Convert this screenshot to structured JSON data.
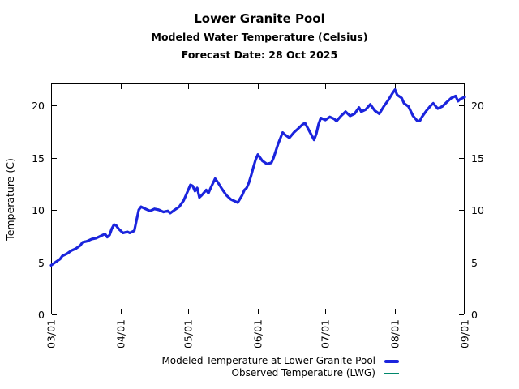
{
  "header": {
    "title": "Lower Granite Pool",
    "subtitle": "Modeled Water Temperature (Celsius)",
    "forecast_line": "Forecast Date: 28 Oct 2025"
  },
  "legend": {
    "modeled": "Modeled Temperature at Lower Granite Pool",
    "observed": "Observed Temperature (LWG)"
  },
  "chart_data": {
    "type": "line",
    "title": "Lower Granite Pool",
    "subtitle": "Modeled Water Temperature (Celsius)",
    "forecast_date": "28 Oct 2025",
    "xlabel": "",
    "ylabel": "Temperature (C)",
    "y_ticks": [
      0,
      5,
      10,
      15,
      20
    ],
    "ylim": [
      0,
      22.1
    ],
    "x_tick_labels": [
      "03/01",
      "04/01",
      "05/01",
      "06/01",
      "07/01",
      "08/01",
      "09/01"
    ],
    "x_span_days": 184,
    "grid": false,
    "legend_position": "below-plot-right",
    "axis_color": "#000000",
    "series": [
      {
        "name": "Modeled Temperature at Lower Granite Pool",
        "color": "#1b24dd",
        "line_width": 3.2,
        "points": [
          [
            "03/01",
            4.7
          ],
          [
            "03/03",
            5.0
          ],
          [
            "03/05",
            5.3
          ],
          [
            "03/06",
            5.6
          ],
          [
            "03/08",
            5.8
          ],
          [
            "03/10",
            6.1
          ],
          [
            "03/12",
            6.3
          ],
          [
            "03/14",
            6.6
          ],
          [
            "03/15",
            6.9
          ],
          [
            "03/17",
            7.0
          ],
          [
            "03/19",
            7.2
          ],
          [
            "03/21",
            7.3
          ],
          [
            "03/23",
            7.5
          ],
          [
            "03/25",
            7.7
          ],
          [
            "03/26",
            7.4
          ],
          [
            "03/27",
            7.6
          ],
          [
            "03/28",
            8.2
          ],
          [
            "03/29",
            8.6
          ],
          [
            "03/30",
            8.5
          ],
          [
            "03/31",
            8.2
          ],
          [
            "04/01",
            8.0
          ],
          [
            "04/02",
            7.8
          ],
          [
            "04/04",
            7.9
          ],
          [
            "04/05",
            7.8
          ],
          [
            "04/07",
            8.0
          ],
          [
            "04/08",
            9.0
          ],
          [
            "04/09",
            10.0
          ],
          [
            "04/10",
            10.3
          ],
          [
            "04/12",
            10.1
          ],
          [
            "04/14",
            9.9
          ],
          [
            "04/16",
            10.1
          ],
          [
            "04/18",
            10.0
          ],
          [
            "04/20",
            9.8
          ],
          [
            "04/22",
            9.9
          ],
          [
            "04/23",
            9.7
          ],
          [
            "04/25",
            10.0
          ],
          [
            "04/27",
            10.3
          ],
          [
            "04/29",
            10.9
          ],
          [
            "04/30",
            11.4
          ],
          [
            "05/01",
            11.9
          ],
          [
            "05/02",
            12.4
          ],
          [
            "05/03",
            12.3
          ],
          [
            "05/04",
            11.8
          ],
          [
            "05/05",
            12.1
          ],
          [
            "05/06",
            11.2
          ],
          [
            "05/07",
            11.4
          ],
          [
            "05/09",
            11.9
          ],
          [
            "05/10",
            11.6
          ],
          [
            "05/11",
            12.1
          ],
          [
            "05/13",
            13.0
          ],
          [
            "05/14",
            12.7
          ],
          [
            "05/16",
            12.0
          ],
          [
            "05/18",
            11.4
          ],
          [
            "05/20",
            11.0
          ],
          [
            "05/22",
            10.8
          ],
          [
            "05/23",
            10.7
          ],
          [
            "05/25",
            11.4
          ],
          [
            "05/26",
            11.9
          ],
          [
            "05/27",
            12.1
          ],
          [
            "05/28",
            12.6
          ],
          [
            "05/29",
            13.3
          ],
          [
            "05/30",
            14.1
          ],
          [
            "05/31",
            14.8
          ],
          [
            "06/01",
            15.3
          ],
          [
            "06/03",
            14.7
          ],
          [
            "06/05",
            14.4
          ],
          [
            "06/07",
            14.5
          ],
          [
            "06/08",
            15.0
          ],
          [
            "06/10",
            16.3
          ],
          [
            "06/12",
            17.4
          ],
          [
            "06/13",
            17.2
          ],
          [
            "06/15",
            16.9
          ],
          [
            "06/17",
            17.4
          ],
          [
            "06/19",
            17.8
          ],
          [
            "06/21",
            18.2
          ],
          [
            "06/22",
            18.3
          ],
          [
            "06/24",
            17.5
          ],
          [
            "06/26",
            16.7
          ],
          [
            "06/27",
            17.3
          ],
          [
            "06/28",
            18.2
          ],
          [
            "06/29",
            18.8
          ],
          [
            "06/30",
            18.7
          ],
          [
            "07/01",
            18.6
          ],
          [
            "07/03",
            18.9
          ],
          [
            "07/05",
            18.7
          ],
          [
            "07/06",
            18.5
          ],
          [
            "07/08",
            19.0
          ],
          [
            "07/10",
            19.4
          ],
          [
            "07/12",
            19.0
          ],
          [
            "07/14",
            19.2
          ],
          [
            "07/16",
            19.8
          ],
          [
            "07/17",
            19.4
          ],
          [
            "07/19",
            19.6
          ],
          [
            "07/21",
            20.1
          ],
          [
            "07/23",
            19.5
          ],
          [
            "07/25",
            19.2
          ],
          [
            "07/27",
            19.9
          ],
          [
            "07/29",
            20.5
          ],
          [
            "07/31",
            21.2
          ],
          [
            "08/01",
            21.5
          ],
          [
            "08/02",
            21.0
          ],
          [
            "08/04",
            20.7
          ],
          [
            "08/05",
            20.2
          ],
          [
            "08/07",
            19.9
          ],
          [
            "08/09",
            19.0
          ],
          [
            "08/11",
            18.5
          ],
          [
            "08/12",
            18.5
          ],
          [
            "08/13",
            18.9
          ],
          [
            "08/15",
            19.5
          ],
          [
            "08/17",
            20.0
          ],
          [
            "08/18",
            20.2
          ],
          [
            "08/20",
            19.7
          ],
          [
            "08/22",
            19.9
          ],
          [
            "08/24",
            20.3
          ],
          [
            "08/26",
            20.7
          ],
          [
            "08/28",
            20.9
          ],
          [
            "08/29",
            20.4
          ],
          [
            "08/30",
            20.6
          ],
          [
            "09/01",
            20.8
          ]
        ]
      },
      {
        "name": "Observed Temperature (LWG)",
        "color": "#00876b",
        "line_width": 1.4,
        "points_note": "tracks the modeled line almost exactly; hidden beneath it on the plot",
        "points": []
      }
    ]
  }
}
